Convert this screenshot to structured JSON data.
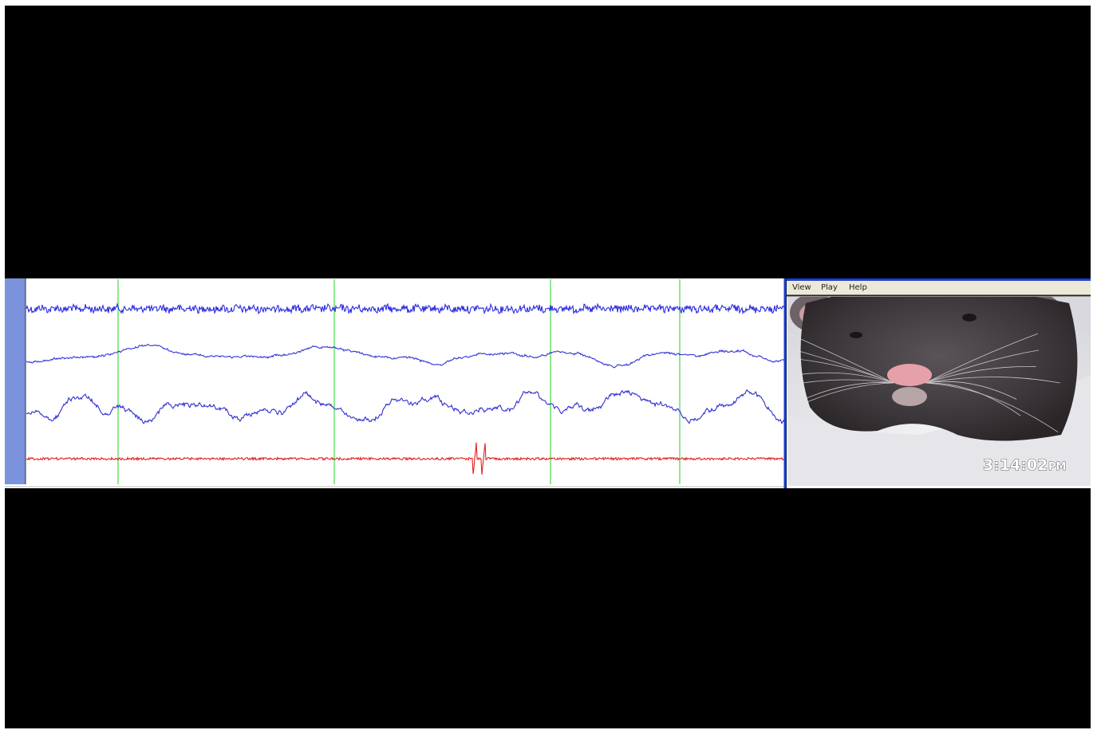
{
  "menu": {
    "items": [
      "View",
      "Play",
      "Help"
    ]
  },
  "video": {
    "time": "3:14:02",
    "meridiem": "PM"
  }
}
